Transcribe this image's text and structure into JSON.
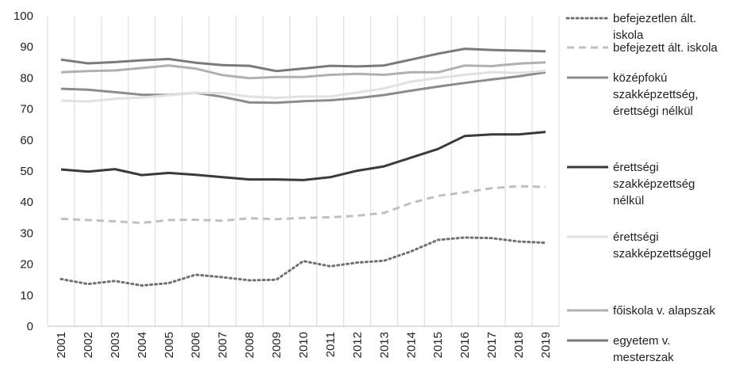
{
  "chart_data": {
    "type": "line",
    "title": "",
    "xlabel": "",
    "ylabel": "",
    "ylim": [
      0,
      100
    ],
    "yticks": [
      0,
      10,
      20,
      30,
      40,
      50,
      60,
      70,
      80,
      90,
      100
    ],
    "grid": "vertical",
    "legend_position": "right",
    "x": [
      "2001",
      "2002",
      "2003",
      "2004",
      "2005",
      "2006",
      "2007",
      "2008",
      "2009",
      "2010",
      "2011",
      "2012",
      "2013",
      "2014",
      "2015",
      "2016",
      "2017",
      "2018",
      "2019"
    ],
    "series": [
      {
        "name": "befejezetlen ált. iskola",
        "legend_lines": [
          "befejezetlen ált.",
          "iskola"
        ],
        "color": "#707070",
        "style": "dotted",
        "values": [
          15.2,
          13.6,
          14.6,
          13.1,
          13.9,
          16.6,
          15.8,
          14.8,
          15.0,
          21.0,
          19.3,
          20.5,
          21.1,
          24.1,
          27.8,
          28.6,
          28.4,
          27.3,
          26.9
        ]
      },
      {
        "name": "befejezett ált. iskola",
        "legend_lines": [
          "befejezett ált. iskola"
        ],
        "color": "#c0c0c0",
        "style": "dashed",
        "values": [
          34.6,
          34.2,
          33.8,
          33.3,
          34.2,
          34.3,
          34.0,
          34.8,
          34.5,
          34.9,
          35.1,
          35.6,
          36.5,
          39.7,
          42.0,
          43.1,
          44.5,
          45.1,
          44.9
        ]
      },
      {
        "name": "középfokú szakképzettség, érettségi nélkül",
        "legend_lines": [
          "középfokú",
          "szakképzettség,",
          "érettségi nélkül"
        ],
        "color": "#8c8c8c",
        "style": "solid",
        "values": [
          76.5,
          76.2,
          75.4,
          74.6,
          74.5,
          75.2,
          73.9,
          72.1,
          72.0,
          72.5,
          72.8,
          73.5,
          74.5,
          75.9,
          77.2,
          78.4,
          79.5,
          80.5,
          81.8
        ]
      },
      {
        "name": "érettségi szakképzettség nélkül",
        "legend_lines": [
          "érettségi",
          "szakképzettség",
          "nélkül"
        ],
        "color": "#3a3a3a",
        "style": "solid",
        "values": [
          50.5,
          49.8,
          50.6,
          48.7,
          49.4,
          48.8,
          48.0,
          47.3,
          47.3,
          47.1,
          48.0,
          50.1,
          51.5,
          54.3,
          57.1,
          61.3,
          61.8,
          61.8,
          62.6
        ]
      },
      {
        "name": "érettségi szakképzettséggel",
        "legend_lines": [
          "érettségi",
          "szakképzettséggel"
        ],
        "color": "#e1e1e1",
        "style": "solid",
        "values": [
          72.7,
          72.4,
          73.3,
          73.7,
          74.4,
          75.2,
          75.1,
          74.0,
          73.6,
          74.0,
          74.0,
          75.3,
          76.6,
          78.8,
          80.0,
          81.0,
          81.9,
          81.6,
          82.3
        ]
      },
      {
        "name": "főiskola v. alapszak",
        "legend_lines": [
          "főiskola v. alapszak"
        ],
        "color": "#b0b0b0",
        "style": "solid",
        "values": [
          81.8,
          82.2,
          82.4,
          83.2,
          84.0,
          83.0,
          80.9,
          79.9,
          80.3,
          80.3,
          81.0,
          81.3,
          81.0,
          81.8,
          81.8,
          84.0,
          83.8,
          84.6,
          85.0
        ]
      },
      {
        "name": "egyetem v. mesterszak",
        "legend_lines": [
          "egyetem v.",
          "mesterszak"
        ],
        "color": "#7a7a7a",
        "style": "solid",
        "values": [
          85.9,
          84.7,
          85.1,
          85.7,
          86.1,
          84.9,
          84.1,
          83.9,
          82.2,
          83.0,
          83.9,
          83.7,
          84.0,
          85.9,
          87.8,
          89.4,
          89.0,
          88.8,
          88.6
        ]
      }
    ]
  }
}
